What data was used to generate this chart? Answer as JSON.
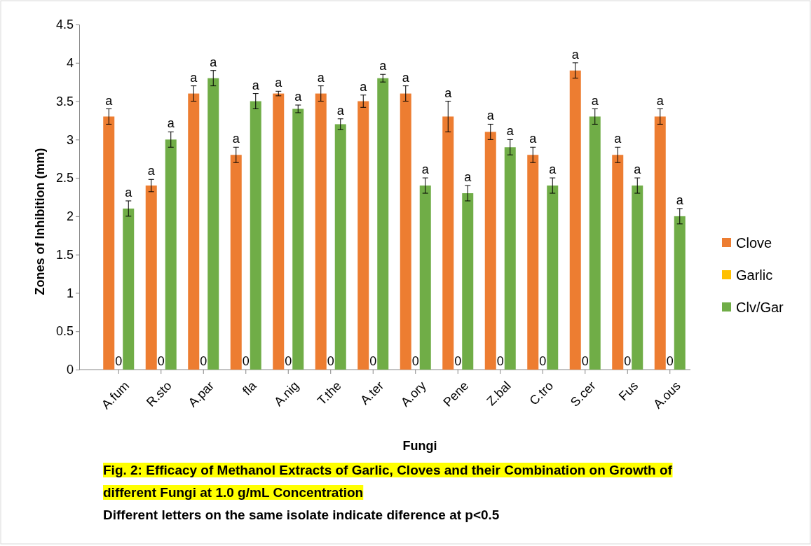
{
  "chart_data": {
    "type": "bar",
    "xlabel": "Fungi",
    "ylabel": "Zones of Inhibition (mm)",
    "categories": [
      "A.fum",
      "R.sto",
      "A.par",
      "fla",
      "A.nig",
      "T.the",
      "A.ter",
      "A.ory",
      "Pene",
      "Z.bal",
      "C.tro",
      "S.cer",
      "Fus",
      "A.ous"
    ],
    "series": [
      {
        "name": "Clove",
        "color": "#ed7d31",
        "values": [
          3.3,
          2.4,
          3.6,
          2.8,
          3.6,
          3.6,
          3.5,
          3.6,
          3.3,
          3.1,
          2.8,
          3.9,
          2.8,
          3.3
        ],
        "errors": [
          0.1,
          0.08,
          0.1,
          0.1,
          0.03,
          0.1,
          0.08,
          0.1,
          0.2,
          0.1,
          0.1,
          0.1,
          0.1,
          0.1
        ],
        "value_labels": [
          "a",
          "a",
          "a",
          "a",
          "a",
          "a",
          "a",
          "a",
          "a",
          "a",
          "a",
          "a",
          "a",
          "a"
        ]
      },
      {
        "name": "Garlic",
        "color": "#ffc000",
        "values": [
          0,
          0,
          0,
          0,
          0,
          0,
          0,
          0,
          0,
          0,
          0,
          0,
          0,
          0
        ],
        "value_labels": [
          "0",
          "0",
          "0",
          "0",
          "0",
          "0",
          "0",
          "0",
          "0",
          "0",
          "0",
          "0",
          "0",
          "0"
        ]
      },
      {
        "name": "Clv/Gar",
        "color": "#70ad47",
        "values": [
          2.1,
          3.0,
          3.8,
          3.5,
          3.4,
          3.2,
          3.8,
          2.4,
          2.3,
          2.9,
          2.4,
          3.3,
          2.4,
          2.0
        ],
        "errors": [
          0.1,
          0.1,
          0.1,
          0.1,
          0.05,
          0.07,
          0.05,
          0.1,
          0.1,
          0.1,
          0.1,
          0.1,
          0.1,
          0.1
        ],
        "value_labels": [
          "a",
          "a",
          "a",
          "a",
          "a",
          "a",
          "a",
          "a",
          "a",
          "a",
          "a",
          "a",
          "a",
          "a"
        ]
      }
    ],
    "ylim": [
      0,
      4.5
    ],
    "yticks": [
      0,
      {
        "value": 0.5,
        "label": "0.5"
      },
      1,
      {
        "value": 1.5,
        "label": "1.5"
      },
      2,
      {
        "value": 2.5,
        "label": "2.5"
      },
      3,
      {
        "value": 3.5,
        "label": "3.5"
      },
      4,
      {
        "value": 4.5,
        "label": "4.5"
      }
    ],
    "grid": false,
    "legend": "right",
    "annotations": [
      "Fig. 2: Efficacy of Methanol Extracts of Garlic, Cloves and their Combination on Growth of different Fungi at 1.0 g/mL Concentration",
      "Different letters on the same isolate indicate diference at p<0.5"
    ]
  }
}
